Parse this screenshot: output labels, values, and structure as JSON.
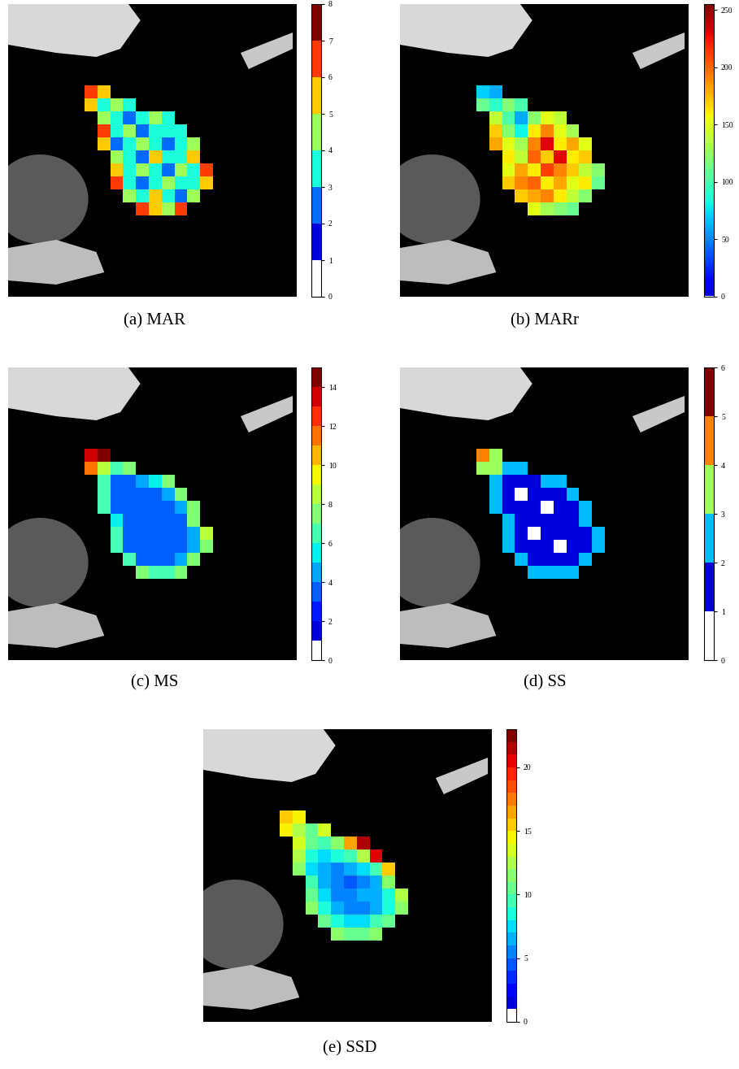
{
  "chart_data": [
    {
      "type": "heatmap",
      "title": "(a) MAR",
      "tick_labels": false,
      "colorbar_range": [
        0,
        8
      ],
      "colorbar_ticks": [
        0,
        1,
        2,
        3,
        4,
        5,
        6,
        7,
        8
      ],
      "cells": [
        [
          6,
          5,
          null,
          null,
          null,
          null,
          null,
          null,
          null,
          null
        ],
        [
          5,
          3,
          4,
          3,
          null,
          null,
          null,
          null,
          null,
          null
        ],
        [
          null,
          4,
          3,
          2,
          3,
          4,
          3,
          null,
          null,
          null
        ],
        [
          null,
          6,
          3,
          4,
          2,
          3,
          3,
          3,
          null,
          null
        ],
        [
          null,
          5,
          2,
          3,
          4,
          3,
          2,
          3,
          4,
          null
        ],
        [
          null,
          null,
          4,
          3,
          2,
          5,
          3,
          3,
          5,
          null
        ],
        [
          null,
          null,
          5,
          3,
          4,
          3,
          2,
          4,
          3,
          6
        ],
        [
          null,
          null,
          6,
          3,
          2,
          3,
          4,
          3,
          3,
          5
        ],
        [
          null,
          null,
          null,
          4,
          3,
          5,
          3,
          2,
          4,
          null
        ],
        [
          null,
          null,
          null,
          null,
          6,
          5,
          4,
          6,
          null,
          null
        ]
      ]
    },
    {
      "type": "heatmap",
      "title": "(b) MARr",
      "tick_labels": false,
      "colorbar_range": [
        0,
        255
      ],
      "colorbar_ticks": [
        0,
        50,
        100,
        150,
        200,
        250
      ],
      "cells": [
        [
          70,
          60,
          null,
          null,
          null,
          null,
          null,
          null,
          null,
          null
        ],
        [
          110,
          90,
          120,
          100,
          null,
          null,
          null,
          null,
          null,
          null
        ],
        [
          null,
          140,
          100,
          60,
          120,
          150,
          140,
          null,
          null,
          null
        ],
        [
          null,
          170,
          120,
          80,
          160,
          190,
          150,
          130,
          null,
          null
        ],
        [
          null,
          180,
          150,
          130,
          190,
          230,
          160,
          180,
          150,
          null
        ],
        [
          null,
          null,
          160,
          140,
          200,
          170,
          230,
          160,
          170,
          null
        ],
        [
          null,
          null,
          150,
          180,
          160,
          210,
          190,
          170,
          140,
          120
        ],
        [
          null,
          null,
          170,
          190,
          200,
          160,
          180,
          150,
          160,
          110
        ],
        [
          null,
          null,
          null,
          170,
          180,
          190,
          160,
          140,
          120,
          null
        ],
        [
          null,
          null,
          null,
          null,
          150,
          130,
          120,
          110,
          null,
          null
        ]
      ]
    },
    {
      "type": "heatmap",
      "title": "(c) MS",
      "tick_labels": false,
      "colorbar_range": [
        0,
        15
      ],
      "colorbar_ticks": [
        0,
        2,
        4,
        6,
        8,
        10,
        12,
        14
      ],
      "cells": [
        [
          13,
          14,
          null,
          null,
          null,
          null,
          null,
          null,
          null,
          null
        ],
        [
          11,
          8,
          6,
          7,
          null,
          null,
          null,
          null,
          null,
          null
        ],
        [
          null,
          6,
          3,
          3,
          4,
          5,
          7,
          null,
          null,
          null
        ],
        [
          null,
          6,
          3,
          3,
          3,
          3,
          4,
          7,
          null,
          null
        ],
        [
          null,
          6,
          3,
          3,
          3,
          3,
          3,
          4,
          7,
          null
        ],
        [
          null,
          null,
          5,
          3,
          3,
          3,
          3,
          3,
          7,
          null
        ],
        [
          null,
          null,
          6,
          3,
          3,
          3,
          3,
          3,
          4,
          8
        ],
        [
          null,
          null,
          6,
          3,
          3,
          3,
          3,
          3,
          4,
          7
        ],
        [
          null,
          null,
          null,
          6,
          3,
          3,
          3,
          4,
          7,
          null
        ],
        [
          null,
          null,
          null,
          null,
          7,
          6,
          6,
          7,
          null,
          null
        ]
      ]
    },
    {
      "type": "heatmap",
      "title": "(d) SS",
      "tick_labels": false,
      "colorbar_range": [
        0,
        6
      ],
      "colorbar_ticks": [
        0,
        1,
        2,
        3,
        4,
        5,
        6
      ],
      "cells": [
        [
          4,
          3,
          null,
          null,
          null,
          null,
          null,
          null,
          null,
          null
        ],
        [
          3,
          3,
          2,
          2,
          null,
          null,
          null,
          null,
          null,
          null
        ],
        [
          null,
          2,
          1,
          1,
          1,
          2,
          2,
          null,
          null,
          null
        ],
        [
          null,
          2,
          1,
          0,
          1,
          1,
          1,
          2,
          null,
          null
        ],
        [
          null,
          2,
          1,
          1,
          1,
          0,
          1,
          1,
          2,
          null
        ],
        [
          null,
          null,
          2,
          1,
          1,
          1,
          1,
          1,
          2,
          null
        ],
        [
          null,
          null,
          2,
          1,
          0,
          1,
          1,
          1,
          1,
          2
        ],
        [
          null,
          null,
          2,
          1,
          1,
          1,
          0,
          1,
          1,
          2
        ],
        [
          null,
          null,
          null,
          2,
          1,
          1,
          1,
          1,
          2,
          null
        ],
        [
          null,
          null,
          null,
          null,
          2,
          2,
          2,
          2,
          null,
          null
        ]
      ]
    },
    {
      "type": "heatmap",
      "title": "(e) SSD",
      "tick_labels": false,
      "colorbar_range": [
        0,
        23
      ],
      "colorbar_ticks": [
        0,
        5,
        10,
        15,
        20
      ],
      "cells": [
        [
          15,
          14,
          null,
          null,
          null,
          null,
          null,
          null,
          null,
          null
        ],
        [
          14,
          12,
          10,
          13,
          null,
          null,
          null,
          null,
          null,
          null
        ],
        [
          null,
          13,
          10,
          9,
          11,
          16,
          21,
          null,
          null,
          null
        ],
        [
          null,
          12,
          8,
          7,
          8,
          9,
          12,
          20,
          null,
          null
        ],
        [
          null,
          11,
          7,
          6,
          5,
          6,
          7,
          9,
          15,
          null
        ],
        [
          null,
          null,
          9,
          6,
          5,
          4,
          5,
          6,
          11,
          null
        ],
        [
          null,
          null,
          10,
          7,
          5,
          5,
          6,
          6,
          8,
          12
        ],
        [
          null,
          null,
          11,
          8,
          6,
          5,
          5,
          6,
          8,
          11
        ],
        [
          null,
          null,
          null,
          10,
          8,
          7,
          7,
          9,
          10,
          null
        ],
        [
          null,
          null,
          null,
          null,
          11,
          10,
          10,
          11,
          null,
          null
        ]
      ]
    }
  ]
}
